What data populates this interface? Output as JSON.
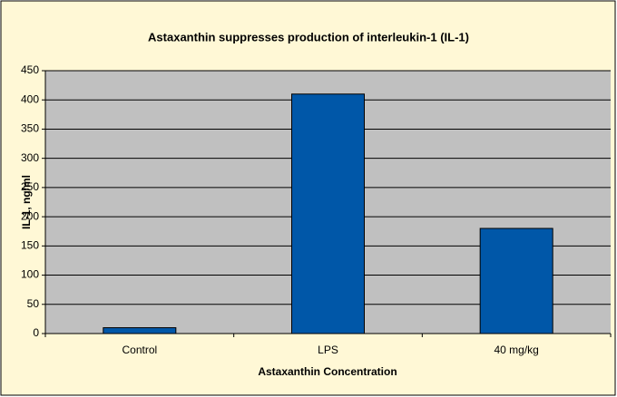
{
  "chart_data": {
    "type": "bar",
    "title": "Astaxanthin suppresses production of interleukin-1 (IL-1)",
    "x_label": "Astaxanthin Concentration",
    "y_label": "IL-1, ng/ml",
    "categories": [
      "Control",
      "LPS",
      "40 mg/kg"
    ],
    "values": [
      10,
      410,
      180
    ],
    "color": "#0057a8",
    "ylim": [
      0,
      450
    ],
    "yticks": [
      0,
      50,
      100,
      150,
      200,
      250,
      300,
      350,
      400,
      450
    ],
    "grid": true
  }
}
